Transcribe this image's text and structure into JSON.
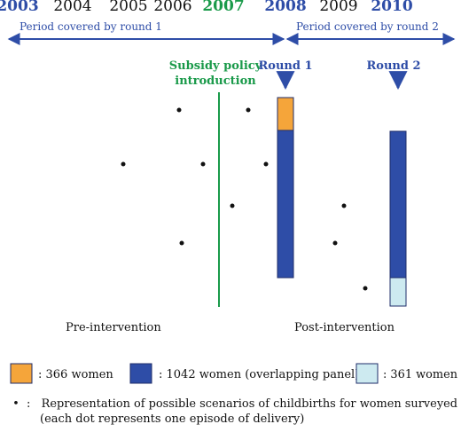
{
  "years": [
    {
      "label": "2003",
      "highlight": "blue"
    },
    {
      "label": "2004",
      "highlight": "none"
    },
    {
      "label": "2005",
      "highlight": "none"
    },
    {
      "label": "2006",
      "highlight": "none"
    },
    {
      "label": "2007",
      "highlight": "green"
    },
    {
      "label": "2008",
      "highlight": "blue"
    },
    {
      "label": "2009",
      "highlight": "none"
    },
    {
      "label": "2010",
      "highlight": "blue"
    }
  ],
  "periods": {
    "round1": "Period covered by round 1",
    "round2": "Period covered by round 2"
  },
  "policy": {
    "line1": "Subsidy policy",
    "line2": "introduction"
  },
  "rounds": {
    "round1": "Round 1",
    "round2": "Round 2"
  },
  "phases": {
    "pre": "Pre-intervention",
    "post": "Post-intervention"
  },
  "legend": {
    "orange": ": 366 women",
    "darkblue": ": 1042 women (overlapping panel)",
    "lightblue": ": 361 women",
    "dot_marker": "•",
    "dot_line1": ":   Representation of possible scenarios of childbirths for women surveyed",
    "dot_line2": "(each dot represents one episode of delivery)"
  },
  "chart_data": {
    "type": "bar",
    "bars": [
      {
        "round": "Round 1",
        "segments": [
          {
            "name": "366 women",
            "value": 366
          },
          {
            "name": "1042 women (overlapping panel)",
            "value": 1042
          }
        ]
      },
      {
        "round": "Round 2",
        "segments": [
          {
            "name": "1042 women (overlapping panel)",
            "value": 1042
          },
          {
            "name": "361 women",
            "value": 361
          }
        ]
      }
    ]
  },
  "colors": {
    "blue": "#2e4da7",
    "green": "#1a9a4a",
    "orange": "#f5a53a",
    "darkblue": "#2e4da7",
    "lightblue": "#cdeaf0",
    "border": "#1f2d6a",
    "text": "#111111"
  }
}
